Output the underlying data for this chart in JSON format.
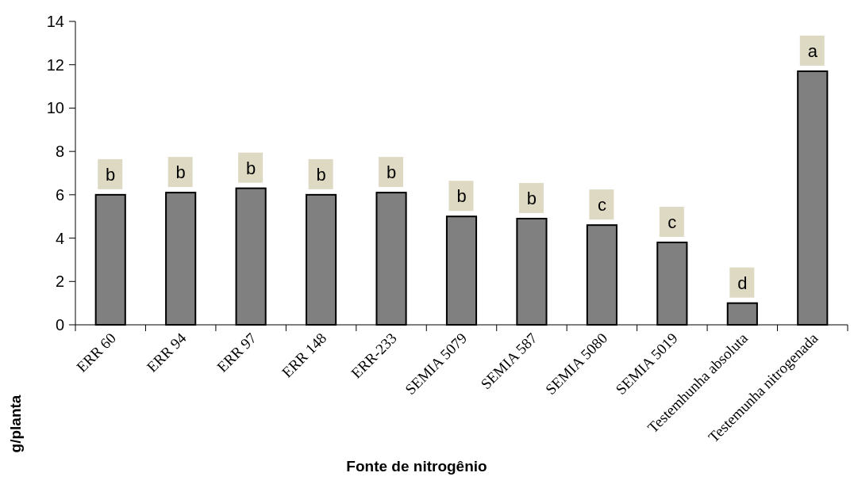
{
  "chart_data": {
    "type": "bar",
    "xlabel": "Fonte de nitrogênio",
    "ylabel": "g/planta",
    "categories": [
      "ERR 60",
      "ERR 94",
      "ERR 97",
      "ERR 148",
      "ERR-233",
      "SEMIA 5079",
      "SEMIA 587",
      "SEMIA 5080",
      "SEMIA 5019",
      "Testemhunha absoluta",
      "Testemunha nitrogenada"
    ],
    "values": [
      6.0,
      6.1,
      6.3,
      6.0,
      6.1,
      5.0,
      4.9,
      4.6,
      3.8,
      1.0,
      11.7
    ],
    "color": "#808080",
    "ylim": [
      0,
      14
    ],
    "yticks": [
      0,
      2,
      4,
      6,
      8,
      10,
      12,
      14
    ],
    "grid": false,
    "annotations": [
      {
        "text": "b",
        "x": "ERR 60",
        "y": 6.0
      },
      {
        "text": "b",
        "x": "ERR 94",
        "y": 6.1
      },
      {
        "text": "b",
        "x": "ERR 97",
        "y": 6.3
      },
      {
        "text": "b",
        "x": "ERR 148",
        "y": 6.0
      },
      {
        "text": "b",
        "x": "ERR-233",
        "y": 6.1
      },
      {
        "text": "b",
        "x": "SEMIA 5079",
        "y": 5.0
      },
      {
        "text": "b",
        "x": "SEMIA 587",
        "y": 4.9
      },
      {
        "text": "c",
        "x": "SEMIA 5080",
        "y": 4.6
      },
      {
        "text": "c",
        "x": "SEMIA 5019",
        "y": 3.8
      },
      {
        "text": "d",
        "x": "Testemhunha absoluta",
        "y": 1.0
      },
      {
        "text": "a",
        "x": "Testemunha nitrogenada",
        "y": 11.7
      }
    ]
  }
}
